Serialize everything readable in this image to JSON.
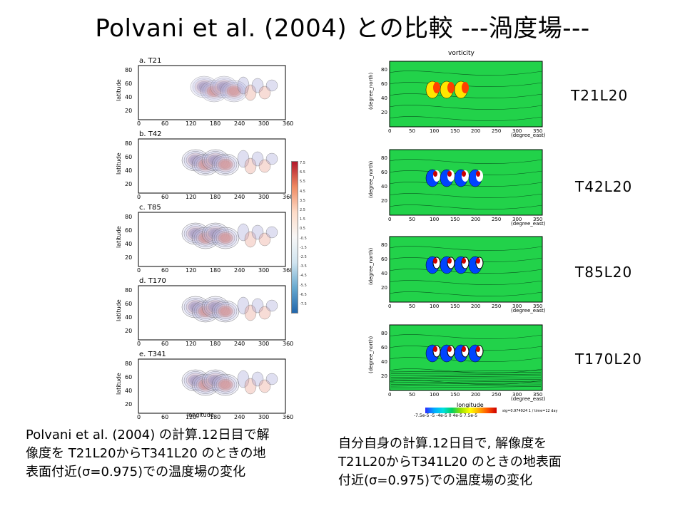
{
  "title": "Polvani et al. (2004) との比較 ---渦度場---",
  "left_figure": {
    "panels": [
      {
        "label": "a. T21"
      },
      {
        "label": "b. T42"
      },
      {
        "label": "c. T85"
      },
      {
        "label": "d. T170"
      },
      {
        "label": "e. T341"
      }
    ],
    "ylabel": "latitude",
    "xlabel": "longitude",
    "yticks": [
      "80",
      "60",
      "40",
      "20"
    ],
    "xticks": [
      "0",
      "60",
      "120",
      "180",
      "240",
      "300",
      "360"
    ],
    "colorbar_ticks": [
      "7.5",
      "6.5",
      "5.5",
      "4.5",
      "3.5",
      "2.5",
      "1.5",
      "0.5",
      "-0.5",
      "-1.5",
      "-2.5",
      "-3.5",
      "-4.5",
      "-5.5",
      "-6.5",
      "-7.5"
    ]
  },
  "right_figure": {
    "title": "vorticity",
    "ylabel": "(degree_north)",
    "xlabel": "(degree_east)",
    "bottom_label": "longitude",
    "yticks": [
      "80",
      "60",
      "40",
      "20"
    ],
    "xticks": [
      "0",
      "50",
      "100",
      "150",
      "200",
      "250",
      "300",
      "350"
    ],
    "legend_ticks": "-7.5e-5 -5 -4e-5 0 4e-5 7.5e-5",
    "note": "sig=0.974924 1 / time=12 day"
  },
  "resolution_labels": [
    "T21L20",
    "T42L20",
    "T85L20",
    "T170L20"
  ],
  "captions": {
    "left": [
      "Polvani et al. (2004) の計算.12日目で解",
      "像度を T21L20からT341L20 のときの地",
      "表面付近(σ=0.975)での温度場の変化"
    ],
    "right": [
      "自分自身の計算.12日目で, 解像度を",
      "T21L20からT341L20 のときの地表面",
      "付近(σ=0.975)での温度場の変化"
    ]
  }
}
